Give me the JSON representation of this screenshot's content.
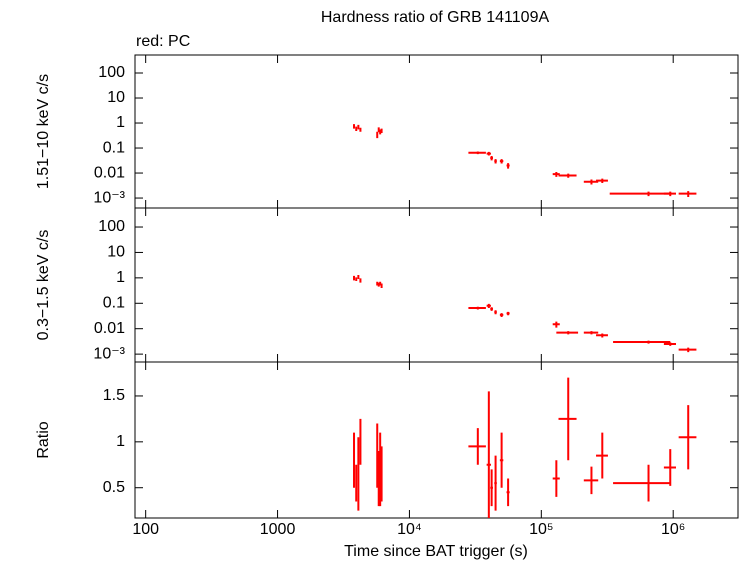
{
  "chart_data": [
    {
      "type": "errorbar",
      "title": "Hardness ratio of GRB 141109A",
      "annotation": "red: PC",
      "ylabel": "1.51−10 keV c/s",
      "log_x": true,
      "log_y": true,
      "xlim": [
        83,
        3100000
      ],
      "ylim": [
        0.0004,
        525
      ],
      "yticks": [
        100,
        10,
        1,
        0.1,
        0.01,
        {
          "value": 0.001,
          "label": "10⁻³"
        }
      ],
      "series": [
        {
          "color": "#ff0000",
          "x": [
            3800,
            3950,
            4100,
            4250,
            5700,
            5850,
            6000,
            6150,
            33000,
            40000,
            42000,
            45000,
            50000,
            56000,
            130000,
            160000,
            240000,
            290000,
            650000,
            950000,
            1300000
          ],
          "xerr": [
            50,
            50,
            50,
            50,
            50,
            50,
            50,
            50,
            5000,
            1500,
            1000,
            1000,
            1500,
            1500,
            8000,
            25000,
            30000,
            30000,
            320000,
            100000,
            200000
          ],
          "values": [
            0.75,
            0.6,
            0.7,
            0.55,
            0.35,
            0.55,
            0.45,
            0.5,
            0.065,
            0.06,
            0.04,
            0.03,
            0.03,
            0.02,
            0.009,
            0.008,
            0.0045,
            0.005,
            0.0015,
            0.0015,
            0.0015
          ],
          "yerr": [
            0.15,
            0.12,
            0.14,
            0.1,
            0.1,
            0.12,
            0.1,
            0.1,
            0.008,
            0.01,
            0.008,
            0.006,
            0.006,
            0.005,
            0.002,
            0.0015,
            0.001,
            0.001,
            0.0003,
            0.0003,
            0.0004
          ]
        }
      ]
    },
    {
      "type": "errorbar",
      "ylabel": "0.3−1.5 keV c/s",
      "log_x": true,
      "log_y": true,
      "xlim": [
        83,
        3100000
      ],
      "ylim": [
        0.00049,
        560
      ],
      "yticks": [
        100,
        10,
        1,
        0.1,
        0.01,
        {
          "value": 0.001,
          "label": "10⁻³"
        }
      ],
      "series": [
        {
          "color": "#ff0000",
          "x": [
            3800,
            3950,
            4100,
            4250,
            5700,
            5850,
            6000,
            6150,
            33000,
            40000,
            42000,
            45000,
            50000,
            56000,
            130000,
            160000,
            240000,
            290000,
            650000,
            950000,
            1300000
          ],
          "xerr": [
            50,
            50,
            50,
            50,
            50,
            50,
            50,
            50,
            5000,
            1500,
            1000,
            1000,
            1500,
            1500,
            8000,
            30000,
            30000,
            30000,
            300000,
            100000,
            200000
          ],
          "values": [
            1.0,
            0.9,
            1.1,
            0.8,
            0.6,
            0.55,
            0.6,
            0.5,
            0.065,
            0.08,
            0.06,
            0.045,
            0.035,
            0.04,
            0.015,
            0.007,
            0.007,
            0.0055,
            0.003,
            0.0025,
            0.0015
          ],
          "yerr": [
            0.2,
            0.15,
            0.2,
            0.15,
            0.1,
            0.1,
            0.1,
            0.1,
            0.008,
            0.015,
            0.01,
            0.008,
            0.006,
            0.006,
            0.004,
            0.001,
            0.001,
            0.001,
            0.0004,
            0.0004,
            0.0003
          ]
        }
      ]
    },
    {
      "type": "errorbar",
      "ylabel": "Ratio",
      "xlabel": "Time since BAT trigger (s)",
      "log_x": true,
      "log_y": false,
      "xlim": [
        83,
        3100000
      ],
      "ylim": [
        0.17,
        1.87
      ],
      "xticks": [
        100,
        1000,
        {
          "value": 10000,
          "label": "10⁴"
        },
        {
          "value": 100000,
          "label": "10⁵"
        },
        {
          "value": 1000000,
          "label": "10⁶"
        }
      ],
      "yticks": [
        0.5,
        1,
        1.5
      ],
      "series": [
        {
          "color": "#ff0000",
          "x": [
            3800,
            3950,
            4100,
            4250,
            5700,
            5850,
            6000,
            6150,
            33000,
            40000,
            42000,
            45000,
            50000,
            56000,
            130000,
            160000,
            240000,
            290000,
            650000,
            950000,
            1300000
          ],
          "xerr": [
            50,
            50,
            50,
            50,
            50,
            50,
            50,
            50,
            5000,
            1500,
            1000,
            1000,
            1500,
            1500,
            8000,
            25000,
            30000,
            30000,
            300000,
            100000,
            200000
          ],
          "values": [
            0.8,
            0.55,
            0.65,
            1.0,
            0.85,
            0.6,
            0.7,
            0.65,
            0.95,
            0.75,
            0.5,
            0.55,
            0.8,
            0.45,
            0.6,
            1.25,
            0.58,
            0.85,
            0.55,
            0.72,
            1.05
          ],
          "yerr": [
            0.3,
            0.2,
            0.4,
            0.25,
            0.35,
            0.3,
            0.4,
            0.3,
            0.2,
            0.8,
            0.2,
            0.3,
            0.3,
            0.15,
            0.2,
            0.45,
            0.15,
            0.25,
            0.2,
            0.2,
            0.35
          ]
        }
      ]
    }
  ]
}
